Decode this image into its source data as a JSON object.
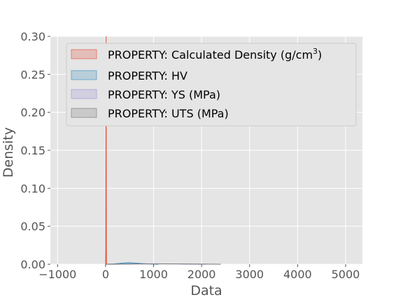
{
  "chart_data": {
    "type": "area",
    "title": "",
    "xlabel": "Data",
    "ylabel": "Density",
    "xlim": [
      -1150,
      5350
    ],
    "ylim": [
      0,
      0.3
    ],
    "xticks": [
      -1000,
      0,
      1000,
      2000,
      3000,
      4000,
      5000
    ],
    "xtick_labels": [
      "−1000",
      "0",
      "1000",
      "2000",
      "3000",
      "4000",
      "5000"
    ],
    "yticks": [
      0,
      0.05,
      0.1,
      0.15,
      0.2,
      0.25,
      0.3
    ],
    "ytick_labels": [
      "0.00",
      "0.05",
      "0.10",
      "0.15",
      "0.20",
      "0.25",
      "0.30"
    ],
    "grid": true,
    "legend_position": "top-left",
    "series": [
      {
        "name": "PROPERTY: Calculated Density (g/cm",
        "name_sup": "3",
        "name_suffix": ")",
        "color": "#E24A33",
        "x": [
          0,
          4,
          7,
          10,
          13,
          16,
          20
        ],
        "y": [
          0,
          0.02,
          0.18,
          0.3,
          0.18,
          0.02,
          0
        ]
      },
      {
        "name": "PROPERTY: HV",
        "color": "#348ABD",
        "x": [
          0,
          150,
          300,
          400,
          500,
          600,
          750,
          900,
          1100
        ],
        "y": [
          0,
          0.0004,
          0.0012,
          0.0018,
          0.002,
          0.0016,
          0.0009,
          0.0003,
          0
        ]
      },
      {
        "name": "PROPERTY: YS (MPa)",
        "color": "#988ED5",
        "x": [
          0,
          300,
          600,
          900,
          1200,
          1500,
          1800,
          2100
        ],
        "y": [
          0,
          0.0002,
          0.0005,
          0.0006,
          0.0005,
          0.0003,
          0.0001,
          0
        ]
      },
      {
        "name": "PROPERTY: UTS (MPa)",
        "color": "#777777",
        "x": [
          0,
          400,
          800,
          1200,
          1600,
          2000,
          2400
        ],
        "y": [
          0,
          0.0002,
          0.0004,
          0.0005,
          0.0004,
          0.0002,
          0
        ]
      }
    ]
  }
}
